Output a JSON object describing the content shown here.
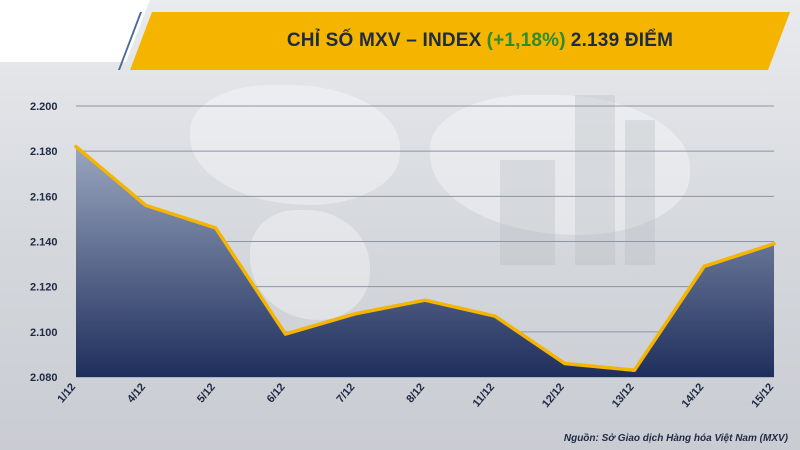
{
  "header": {
    "title_prefix": "CHỈ SỐ MXV – INDEX",
    "title_change": "(+1,18%)",
    "title_value": "2.139 ĐIỂM"
  },
  "colors": {
    "banner": "#f4b400",
    "line": "#f4b400",
    "area_top": "#9aa6bf",
    "area_bottom": "#1f2f5c",
    "change_text": "#2e8b2e",
    "text": "#1f2a44"
  },
  "chart_data": {
    "type": "area",
    "title": "CHỈ SỐ MXV – INDEX (+1,18%) 2.139 ĐIỂM",
    "categories": [
      "1/12",
      "4/12",
      "5/12",
      "6/12",
      "7/12",
      "8/12",
      "11/12",
      "12/12",
      "13/12",
      "14/12",
      "15/12"
    ],
    "series": [
      {
        "values": [
          2182,
          2156,
          2146,
          2099,
          2108,
          2114,
          2107,
          2086,
          2083,
          2129,
          2139
        ]
      }
    ],
    "ylim": [
      2080,
      2200
    ],
    "yticks": [
      2080,
      2100,
      2120,
      2140,
      2160,
      2180,
      2200
    ],
    "ytick_labels": [
      "2.080",
      "2.100",
      "2.120",
      "2.140",
      "2.160",
      "2.180",
      "2.200"
    ],
    "grid": true,
    "xlabel": "",
    "ylabel": ""
  },
  "source_text": "Nguồn: Sở Giao dịch Hàng hóa Việt Nam (MXV)"
}
